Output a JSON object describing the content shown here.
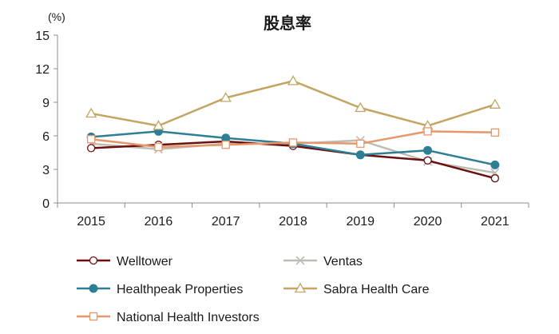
{
  "chart_data": {
    "type": "line",
    "title": "股息率",
    "unit": "(%)",
    "xlabel": "",
    "ylabel": "",
    "x": [
      "2015",
      "2016",
      "2017",
      "2018",
      "2019",
      "2020",
      "2021"
    ],
    "ylim": [
      0,
      15
    ],
    "yticks": [
      0,
      3,
      6,
      9,
      12,
      15
    ],
    "grid": false,
    "legend_position": "bottom",
    "series": [
      {
        "name": "Welltower",
        "values": [
          4.9,
          5.2,
          5.5,
          5.1,
          4.3,
          3.8,
          2.2
        ],
        "color": "#6b0f0f",
        "marker": "circle-open"
      },
      {
        "name": "Ventas",
        "values": [
          5.3,
          4.8,
          5.3,
          5.3,
          5.6,
          3.7,
          2.7
        ],
        "color": "#bdbdb4",
        "marker": "x"
      },
      {
        "name": "Healthpeak Properties",
        "values": [
          5.9,
          6.4,
          5.8,
          5.3,
          4.3,
          4.7,
          3.4
        ],
        "color": "#2e7f94",
        "marker": "circle-filled"
      },
      {
        "name": "Sabra Health Care",
        "values": [
          8.0,
          6.9,
          9.4,
          10.9,
          8.5,
          6.9,
          8.8
        ],
        "color": "#c4a463",
        "marker": "triangle-open"
      },
      {
        "name": "National Health Investors",
        "values": [
          5.7,
          5.0,
          5.2,
          5.4,
          5.3,
          6.4,
          6.3
        ],
        "color": "#e5986a",
        "marker": "square-open"
      }
    ]
  }
}
